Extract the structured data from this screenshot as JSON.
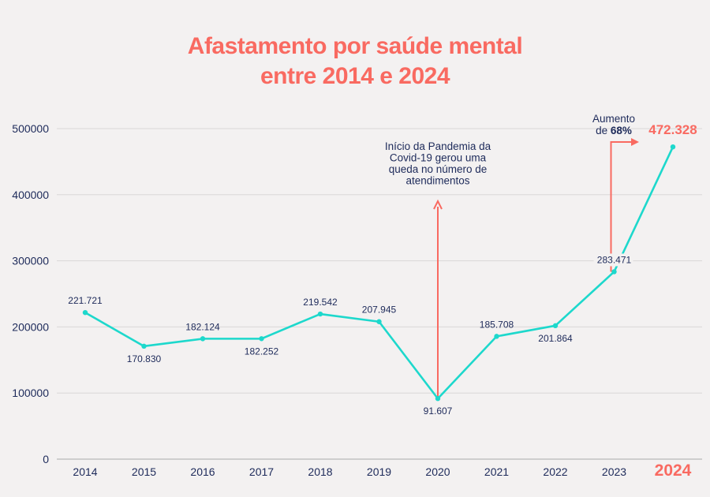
{
  "chart_data": {
    "type": "line",
    "title_line1": "Afastamento por saúde mental",
    "title_line2": "entre 2014 e 2024",
    "xlabel": "",
    "ylabel": "",
    "ylim": [
      0,
      500000
    ],
    "yticks": [
      "0",
      "100000",
      "200000",
      "300000",
      "400000",
      "500000"
    ],
    "categories": [
      "2014",
      "2015",
      "2016",
      "2017",
      "2018",
      "2019",
      "2020",
      "2021",
      "2022",
      "2023",
      "2024"
    ],
    "values": [
      221721,
      170830,
      182124,
      182252,
      219542,
      207945,
      91607,
      185708,
      201864,
      283471,
      472328
    ],
    "data_labels": [
      "221.721",
      "170.830",
      "182.124",
      "182.252",
      "219.542",
      "207.945",
      "91.607",
      "185.708",
      "201.864",
      "283.471",
      "472.328"
    ],
    "grid": true,
    "annotations": {
      "pandemic": [
        "Início da Pandemia da",
        "Covid-19 gerou uma",
        "queda no número de",
        "atendimentos"
      ],
      "increase_line1": "Aumento",
      "increase_prefix": "de ",
      "increase_value": "68%"
    },
    "colors": {
      "line": "#1dd8cc",
      "accent": "#f96a61",
      "text": "#1d2a5a",
      "grid": "#d9d7d7"
    }
  }
}
